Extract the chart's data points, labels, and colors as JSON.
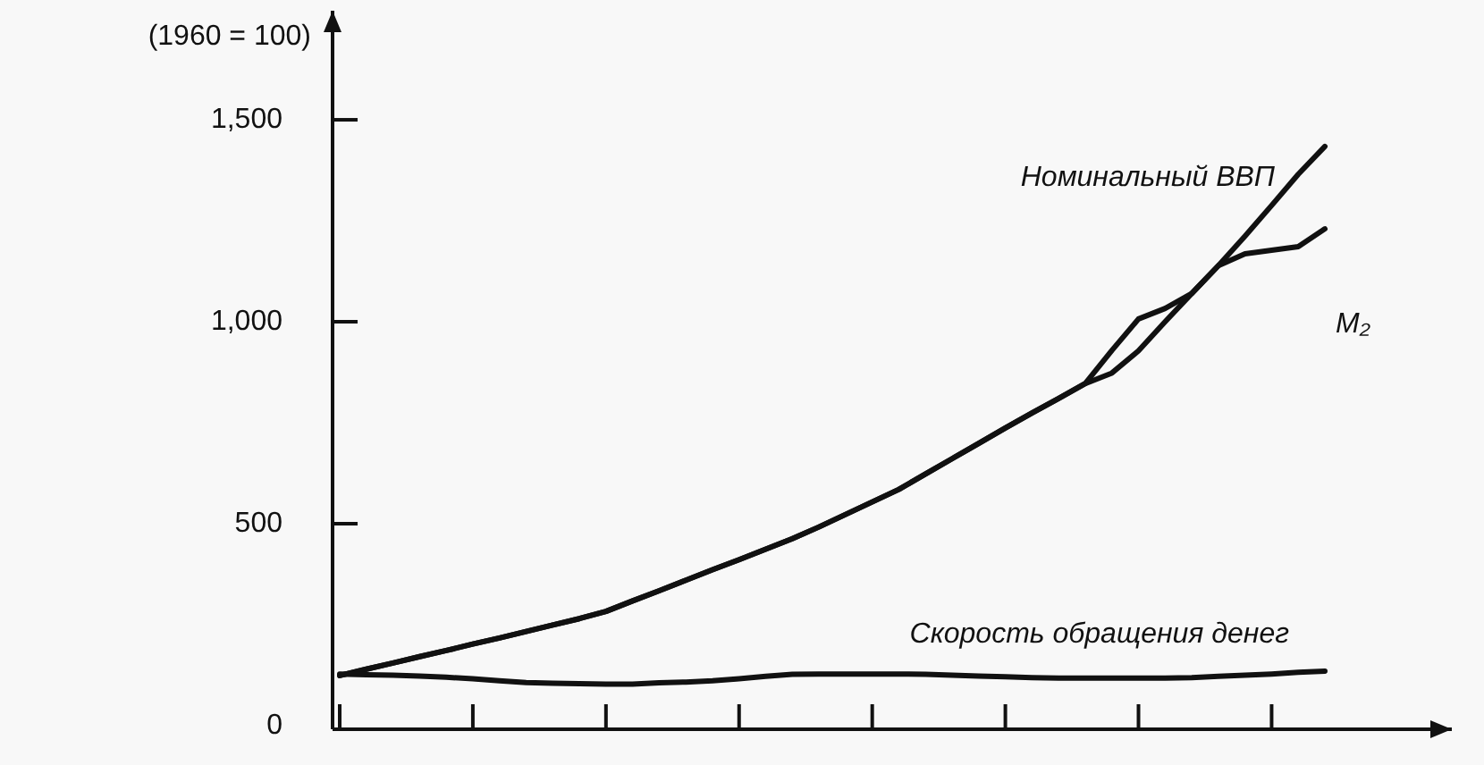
{
  "chart_data": {
    "type": "line",
    "ylabel": "(1960 = 100)",
    "ylim": [
      0,
      1770
    ],
    "categories": [
      null,
      null,
      null,
      null,
      null,
      null,
      null,
      null,
      null,
      null,
      null,
      null,
      null,
      null,
      null,
      null,
      null,
      null,
      null,
      null,
      null,
      null,
      null,
      null,
      null,
      null,
      null,
      null,
      null,
      null,
      null,
      null,
      null,
      null,
      null,
      null,
      null,
      null
    ],
    "yticks": [
      0,
      500,
      {
        "value": 1000,
        "label": "1,000"
      },
      {
        "value": 1500,
        "label": "1,500"
      }
    ],
    "series": [
      {
        "name": "Номинальный ВВП",
        "color": "#111111",
        "values": [
          124,
          140,
          155,
          171,
          186,
          202,
          217,
          233,
          249,
          265,
          283,
          309,
          334,
          360,
          386,
          411,
          437,
          463,
          492,
          523,
          554,
          585,
          623,
          661,
          699,
          737,
          774,
          810,
          847,
          873,
          928,
          1000,
          1070,
          1139,
          1212,
          1288,
          1365,
          1434
        ]
      },
      {
        "name": "M₂",
        "color": "#111111",
        "values": [
          124,
          140,
          155,
          171,
          186,
          202,
          217,
          233,
          249,
          265,
          283,
          309,
          334,
          360,
          386,
          411,
          437,
          463,
          492,
          523,
          554,
          585,
          623,
          661,
          699,
          737,
          774,
          810,
          847,
          929,
          1007,
          1033,
          1070,
          1139,
          1168,
          1177,
          1186,
          1230
        ]
      },
      {
        "name": "Скорость обращения денег",
        "color": "#111111",
        "values": [
          128,
          126,
          125,
          123,
          120,
          116,
          111,
          107,
          105,
          104,
          103,
          103,
          106,
          108,
          111,
          116,
          122,
          127,
          128,
          128,
          128,
          128,
          127,
          125,
          123,
          121,
          119,
          118,
          118,
          118,
          118,
          118,
          119,
          122,
          125,
          128,
          132,
          135
        ]
      }
    ]
  }
}
